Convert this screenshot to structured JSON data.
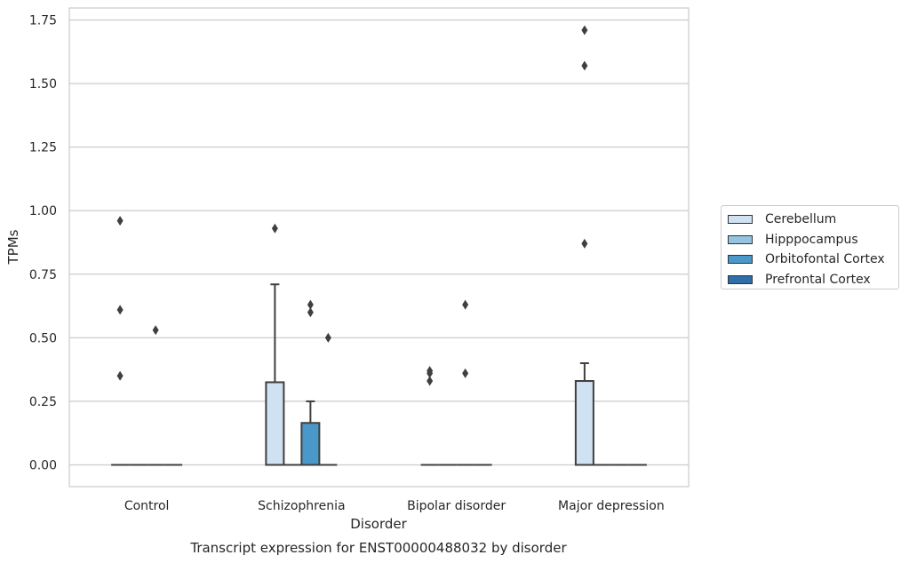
{
  "chart_data": {
    "type": "box",
    "title": "",
    "xlabel": "Disorder",
    "ylabel": "TPMs",
    "caption": "Transcript expression for ENST00000488032 by disorder",
    "categories": [
      "Control",
      "Schizophrenia",
      "Bipolar disorder",
      "Major depression"
    ],
    "ylim": [
      -0.085,
      1.8
    ],
    "yticks": [
      0.0,
      0.25,
      0.5,
      0.75,
      1.0,
      1.25,
      1.5,
      1.75
    ],
    "ytick_labels": [
      "0.00",
      "0.25",
      "0.50",
      "0.75",
      "1.00",
      "1.25",
      "1.50",
      "1.75"
    ],
    "grid": "horizontal",
    "legend_position": "right",
    "series": [
      {
        "name": "Cerebellum",
        "color": "#d0e1f2",
        "boxes": [
          {
            "q1": 0,
            "median": 0,
            "q3": 0,
            "whisker_low": 0,
            "whisker_high": 0,
            "outliers": [
              0.96,
              0.61,
              0.35
            ]
          },
          {
            "q1": 0,
            "median": 0,
            "q3": 0.325,
            "whisker_low": 0,
            "whisker_high": 0.71,
            "outliers": [
              0.93
            ]
          },
          {
            "q1": 0,
            "median": 0,
            "q3": 0,
            "whisker_low": 0,
            "whisker_high": 0,
            "outliers": [
              0.37,
              0.36,
              0.33
            ]
          },
          {
            "q1": 0,
            "median": 0,
            "q3": 0.33,
            "whisker_low": 0,
            "whisker_high": 0.4,
            "outliers": [
              0.87,
              1.57,
              1.71
            ]
          }
        ]
      },
      {
        "name": "Hipppocampus",
        "color": "#94c4df",
        "boxes": [
          {
            "q1": 0,
            "median": 0,
            "q3": 0,
            "whisker_low": 0,
            "whisker_high": 0,
            "outliers": []
          },
          {
            "q1": 0,
            "median": 0,
            "q3": 0,
            "whisker_low": 0,
            "whisker_high": 0,
            "outliers": []
          },
          {
            "q1": 0,
            "median": 0,
            "q3": 0,
            "whisker_low": 0,
            "whisker_high": 0,
            "outliers": []
          },
          {
            "q1": 0,
            "median": 0,
            "q3": 0,
            "whisker_low": 0,
            "whisker_high": 0,
            "outliers": []
          }
        ]
      },
      {
        "name": "Orbitofontal Cortex",
        "color": "#4a98c9",
        "boxes": [
          {
            "q1": 0,
            "median": 0,
            "q3": 0,
            "whisker_low": 0,
            "whisker_high": 0,
            "outliers": [
              0.53
            ]
          },
          {
            "q1": 0,
            "median": 0,
            "q3": 0.165,
            "whisker_low": 0,
            "whisker_high": 0.25,
            "outliers": [
              0.63,
              0.6
            ]
          },
          {
            "q1": 0,
            "median": 0,
            "q3": 0,
            "whisker_low": 0,
            "whisker_high": 0,
            "outliers": [
              0.63,
              0.36
            ]
          },
          {
            "q1": 0,
            "median": 0,
            "q3": 0,
            "whisker_low": 0,
            "whisker_high": 0,
            "outliers": []
          }
        ]
      },
      {
        "name": "Prefrontal Cortex",
        "color": "#2e6ea9",
        "boxes": [
          {
            "q1": 0,
            "median": 0,
            "q3": 0,
            "whisker_low": 0,
            "whisker_high": 0,
            "outliers": []
          },
          {
            "q1": 0,
            "median": 0,
            "q3": 0,
            "whisker_low": 0,
            "whisker_high": 0,
            "outliers": [
              0.5
            ]
          },
          {
            "q1": 0,
            "median": 0,
            "q3": 0,
            "whisker_low": 0,
            "whisker_high": 0,
            "outliers": []
          },
          {
            "q1": 0,
            "median": 0,
            "q3": 0,
            "whisker_low": 0,
            "whisker_high": 0,
            "outliers": []
          }
        ]
      }
    ],
    "colors": {
      "grid": "#cccccc",
      "frame": "#cccccc",
      "box_edge": "#3f3f3f",
      "outlier": "#3f3f3f"
    }
  }
}
